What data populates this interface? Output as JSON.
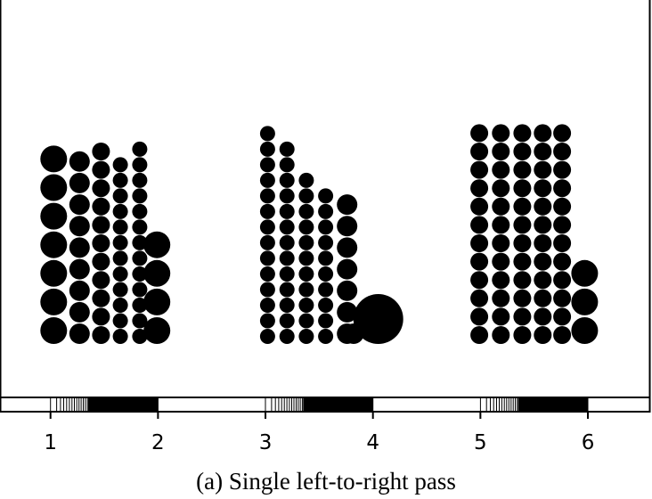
{
  "chart_data": {
    "type": "scatter",
    "subtype": "dot-packing plot",
    "caption": "(a) Single left-to-right pass",
    "xlim": [
      0.53,
      6.58
    ],
    "x_ticks": [
      "1",
      "2",
      "3",
      "4",
      "5",
      "6"
    ],
    "x_tick_values": [
      1,
      2,
      3,
      4,
      5,
      6
    ],
    "color": "#000000",
    "background": "#ffffff",
    "rug_ranges": [
      {
        "from": 1.0,
        "to": 2.0
      },
      {
        "from": 3.0,
        "to": 4.0
      },
      {
        "from": 5.0,
        "to": 6.0
      }
    ],
    "groups": [
      {
        "columns": [
          {
            "x": 1.03,
            "count": 7,
            "size": "large"
          },
          {
            "x": 1.27,
            "count": 9,
            "size": "medium"
          },
          {
            "x": 1.47,
            "count": 11,
            "size": "small"
          },
          {
            "x": 1.65,
            "count": 12,
            "size": "tiny"
          },
          {
            "x": 1.83,
            "count": 13,
            "size": "tiny"
          },
          {
            "x": 1.99,
            "count": 4,
            "size": "large"
          }
        ]
      },
      {
        "columns": [
          {
            "x": 3.02,
            "count": 14,
            "size": "tiny"
          },
          {
            "x": 3.2,
            "count": 13,
            "size": "tiny"
          },
          {
            "x": 3.38,
            "count": 11,
            "size": "tiny"
          },
          {
            "x": 3.56,
            "count": 10,
            "size": "tiny"
          },
          {
            "x": 3.76,
            "count": 7,
            "size": "medium"
          },
          {
            "x": 3.82,
            "count": 1,
            "size": "medium"
          },
          {
            "x": 4.05,
            "count": 1,
            "size": "huge"
          }
        ]
      },
      {
        "columns": [
          {
            "x": 4.99,
            "count": 12,
            "size": "small"
          },
          {
            "x": 5.19,
            "count": 12,
            "size": "small"
          },
          {
            "x": 5.39,
            "count": 12,
            "size": "small"
          },
          {
            "x": 5.58,
            "count": 12,
            "size": "small"
          },
          {
            "x": 5.76,
            "count": 12,
            "size": "small"
          },
          {
            "x": 5.97,
            "count": 3,
            "size": "large"
          }
        ]
      }
    ]
  }
}
